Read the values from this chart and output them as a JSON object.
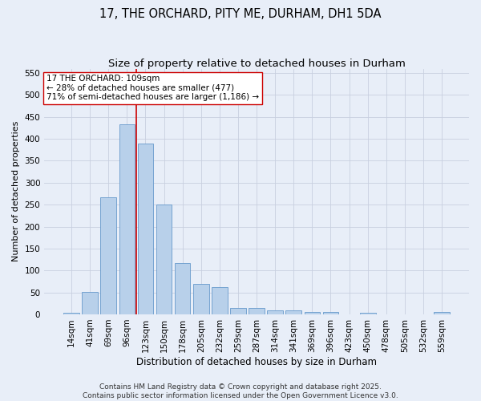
{
  "title": "17, THE ORCHARD, PITY ME, DURHAM, DH1 5DA",
  "subtitle": "Size of property relative to detached houses in Durham",
  "xlabel": "Distribution of detached houses by size in Durham",
  "ylabel": "Number of detached properties",
  "categories": [
    "14sqm",
    "41sqm",
    "69sqm",
    "96sqm",
    "123sqm",
    "150sqm",
    "178sqm",
    "205sqm",
    "232sqm",
    "259sqm",
    "287sqm",
    "314sqm",
    "341sqm",
    "369sqm",
    "396sqm",
    "423sqm",
    "450sqm",
    "478sqm",
    "505sqm",
    "532sqm",
    "559sqm"
  ],
  "values": [
    3,
    52,
    267,
    433,
    390,
    251,
    116,
    70,
    62,
    14,
    14,
    9,
    9,
    6,
    6,
    0,
    3,
    0,
    0,
    0,
    5
  ],
  "bar_color": "#b8d0ea",
  "bar_edge_color": "#6699cc",
  "vline_x_index": 3,
  "vline_color": "#cc0000",
  "annotation_text": "17 THE ORCHARD: 109sqm\n← 28% of detached houses are smaller (477)\n71% of semi-detached houses are larger (1,186) →",
  "annotation_box_color": "#ffffff",
  "annotation_box_edge": "#cc0000",
  "ylim": [
    0,
    560
  ],
  "yticks": [
    0,
    50,
    100,
    150,
    200,
    250,
    300,
    350,
    400,
    450,
    500,
    550
  ],
  "background_color": "#e8eef8",
  "grid_color": "#c8cfe0",
  "footer": "Contains HM Land Registry data © Crown copyright and database right 2025.\nContains public sector information licensed under the Open Government Licence v3.0.",
  "title_fontsize": 10.5,
  "subtitle_fontsize": 9.5,
  "xlabel_fontsize": 8.5,
  "ylabel_fontsize": 8,
  "tick_fontsize": 7.5,
  "annotation_fontsize": 7.5,
  "footer_fontsize": 6.5
}
